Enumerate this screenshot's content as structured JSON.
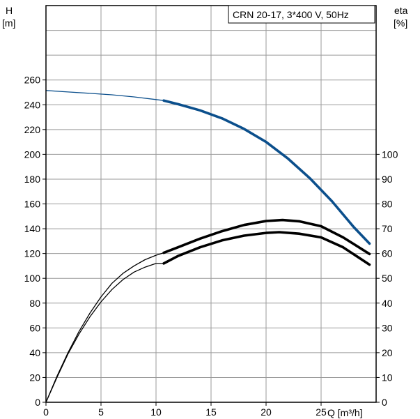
{
  "chart_data": {
    "type": "line",
    "title": "CRN 20-17, 3*400 V, 50Hz",
    "xlabel": "Q [m³/h]",
    "ylabel_left_line1": "H",
    "ylabel_left_line2": "[m]",
    "ylabel_right_line1": "eta",
    "ylabel_right_line2": "[%]",
    "xlim": [
      0,
      30
    ],
    "ylim_left": [
      0,
      320
    ],
    "ylim_right": [
      0,
      160
    ],
    "x_ticks": [
      0,
      5,
      10,
      15,
      20,
      25
    ],
    "y_ticks_left": [
      0,
      20,
      40,
      60,
      80,
      100,
      120,
      140,
      160,
      180,
      200,
      220,
      240,
      260
    ],
    "y_ticks_right": [
      0,
      10,
      20,
      30,
      40,
      50,
      60,
      70,
      80,
      90,
      100
    ],
    "grid": true,
    "series": [
      {
        "axis": "left",
        "color": "#0b4f8c",
        "operating_from_x": 10.7,
        "points": [
          [
            0,
            251.5
          ],
          [
            2,
            250.3
          ],
          [
            4,
            249.2
          ],
          [
            6,
            248.0
          ],
          [
            8,
            246.3
          ],
          [
            10,
            244.2
          ],
          [
            10.7,
            243.4
          ],
          [
            12,
            240.5
          ],
          [
            14,
            235.5
          ],
          [
            16,
            229.0
          ],
          [
            18,
            220.5
          ],
          [
            20,
            210.0
          ],
          [
            22,
            196.5
          ],
          [
            24,
            180.5
          ],
          [
            26,
            162.0
          ],
          [
            28,
            141.0
          ],
          [
            29.4,
            128.0
          ]
        ]
      },
      {
        "axis": "right",
        "color": "#000000",
        "operating_from_x": 10.7,
        "points": [
          [
            0,
            0
          ],
          [
            1,
            10.5
          ],
          [
            2,
            20.0
          ],
          [
            3,
            28.5
          ],
          [
            4,
            36.0
          ],
          [
            5,
            42.5
          ],
          [
            6,
            48.0
          ],
          [
            7,
            52.0
          ],
          [
            8,
            55.0
          ],
          [
            9,
            57.5
          ],
          [
            10,
            59.3
          ],
          [
            10.7,
            60.3
          ],
          [
            12,
            62.5
          ],
          [
            14,
            66.0
          ],
          [
            16,
            69.0
          ],
          [
            18,
            71.5
          ],
          [
            20,
            73.1
          ],
          [
            21.5,
            73.5
          ],
          [
            23,
            73.0
          ],
          [
            25,
            71.0
          ],
          [
            27,
            66.5
          ],
          [
            29.4,
            59.8
          ]
        ]
      },
      {
        "axis": "right",
        "color": "#000000",
        "operating_from_x": 10.7,
        "points": [
          [
            0,
            0
          ],
          [
            1,
            10.0
          ],
          [
            2,
            19.5
          ],
          [
            3,
            27.5
          ],
          [
            4,
            34.5
          ],
          [
            5,
            40.5
          ],
          [
            6,
            45.5
          ],
          [
            7,
            49.5
          ],
          [
            8,
            52.5
          ],
          [
            9,
            54.5
          ],
          [
            10,
            56.0
          ],
          [
            10.7,
            56.0
          ],
          [
            12,
            59.0
          ],
          [
            14,
            62.5
          ],
          [
            16,
            65.3
          ],
          [
            18,
            67.2
          ],
          [
            20,
            68.3
          ],
          [
            21.2,
            68.6
          ],
          [
            23,
            68.0
          ],
          [
            25,
            66.5
          ],
          [
            27,
            62.5
          ],
          [
            29.4,
            55.5
          ]
        ]
      }
    ]
  }
}
